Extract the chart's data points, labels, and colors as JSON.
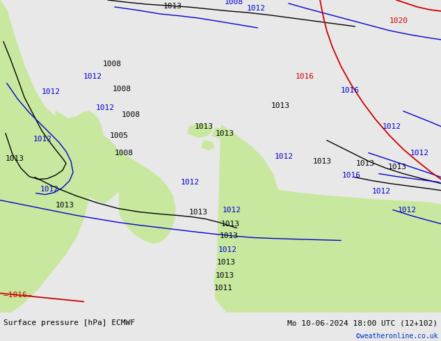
{
  "title_left": "Surface pressure [hPa] ECMWF",
  "title_right": "Mo 10-06-2024 18:00 UTC (12+102)",
  "credit": "©weatheronline.co.uk",
  "bg_color": "#e8e8e8",
  "map_bg": "#e8e8e8",
  "green_area_color": "#c8e8a0",
  "label_color_black": "#000000",
  "label_color_blue": "#0000cc",
  "label_color_red": "#cc0000",
  "bottom_bar_color": "#d4d4d4",
  "font_size_labels": 8,
  "font_size_title": 8,
  "font_size_credit": 7,
  "figsize": [
    6.34,
    4.9
  ],
  "dpi": 100
}
